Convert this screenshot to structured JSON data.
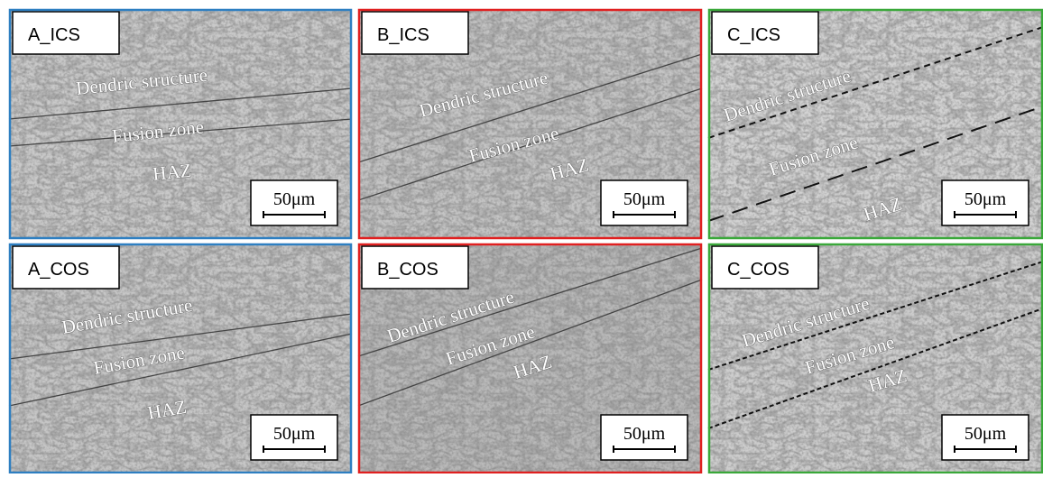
{
  "panels": [
    {
      "label": "A_ICS",
      "border_color": "#2e7fc1",
      "annotations": [
        "Dendric structure",
        "Fusion zone",
        "HAZ"
      ],
      "scale_bar": "50μm"
    },
    {
      "label": "B_ICS",
      "border_color": "#e02020",
      "annotations": [
        "Dendric structure",
        "Fusion zone",
        "HAZ"
      ],
      "scale_bar": "50μm"
    },
    {
      "label": "C_ICS",
      "border_color": "#3aa83a",
      "annotations": [
        "Dendric structure",
        "Fusion zone",
        "HAZ"
      ],
      "scale_bar": "50μm"
    },
    {
      "label": "A_COS",
      "border_color": "#2e7fc1",
      "annotations": [
        "Dendric structure",
        "Fusion zone",
        "HAZ"
      ],
      "scale_bar": "50μm"
    },
    {
      "label": "B_COS",
      "border_color": "#e02020",
      "annotations": [
        "Dendric structure",
        "Fusion zone",
        "HAZ"
      ],
      "scale_bar": "50μm"
    },
    {
      "label": "C_COS",
      "border_color": "#3aa83a",
      "annotations": [
        "Dendric structure",
        "Fusion zone",
        "HAZ"
      ],
      "scale_bar": "50μm"
    }
  ]
}
